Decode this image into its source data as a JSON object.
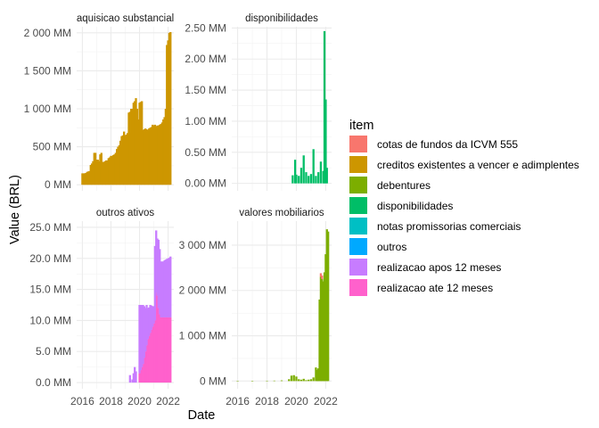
{
  "chart_data": {
    "type": "bar",
    "xlabel": "Date",
    "ylabel": "Value (BRL)",
    "legend": {
      "title": "item",
      "placement": "right",
      "items": [
        {
          "name": "cotas de fundos da ICVM 555",
          "color": "#F8766D"
        },
        {
          "name": "creditos existentes a vencer e adimplentes",
          "color": "#CD9600"
        },
        {
          "name": "debentures",
          "color": "#7CAE00"
        },
        {
          "name": "disponibilidades",
          "color": "#00BE67"
        },
        {
          "name": "notas promissorias comerciais",
          "color": "#00BFC4"
        },
        {
          "name": "outros",
          "color": "#00A9FF"
        },
        {
          "name": "realizacao apos 12 meses",
          "color": "#C77CFF"
        },
        {
          "name": "realizacao ate 12 meses",
          "color": "#FF61CC"
        }
      ]
    },
    "x_ticks": [
      "2016",
      "2018",
      "2020",
      "2022"
    ],
    "xlim": [
      2015.6,
      2022.4
    ],
    "grid": true,
    "panels": [
      {
        "strip": "aquisicao substancial",
        "ylim": [
          -80,
          2080
        ],
        "y_ticks": [
          {
            "v": 0,
            "label": "0 MM"
          },
          {
            "v": 500,
            "label": "500 MM"
          },
          {
            "v": 1000,
            "label": "1 000 MM"
          },
          {
            "v": 1500,
            "label": "1 500 MM"
          },
          {
            "v": 2000,
            "label": "2 000 MM"
          }
        ],
        "series": [
          {
            "name": "creditos existentes a vencer e adimplentes",
            "color": "#CD9600",
            "x": [
              2016.0,
              2016.083,
              2016.167,
              2016.25,
              2016.333,
              2016.417,
              2016.5,
              2016.583,
              2016.667,
              2016.75,
              2016.833,
              2016.917,
              2017.0,
              2017.083,
              2017.167,
              2017.25,
              2017.333,
              2017.417,
              2017.5,
              2017.583,
              2017.667,
              2017.75,
              2017.833,
              2017.917,
              2018.0,
              2018.083,
              2018.167,
              2018.25,
              2018.333,
              2018.417,
              2018.5,
              2018.583,
              2018.667,
              2018.75,
              2018.833,
              2018.917,
              2019.0,
              2019.083,
              2019.167,
              2019.25,
              2019.333,
              2019.417,
              2019.5,
              2019.583,
              2019.667,
              2019.75,
              2019.833,
              2019.917,
              2020.0,
              2020.083,
              2020.167,
              2020.25,
              2020.333,
              2020.417,
              2020.5,
              2020.583,
              2020.667,
              2020.75,
              2020.833,
              2020.917,
              2021.0,
              2021.083,
              2021.167,
              2021.25,
              2021.333,
              2021.417,
              2021.5,
              2021.583,
              2021.667,
              2021.75,
              2021.833,
              2021.917,
              2022.0,
              2022.083,
              2022.167
            ],
            "values": [
              150,
              150,
              150,
              155,
              170,
              175,
              180,
              260,
              280,
              310,
              420,
              420,
              330,
              330,
              310,
              400,
              420,
              300,
              300,
              310,
              320,
              320,
              350,
              360,
              380,
              380,
              390,
              400,
              420,
              470,
              500,
              520,
              580,
              640,
              650,
              700,
              650,
              660,
              680,
              950,
              960,
              1000,
              1000,
              1080,
              1100,
              1140,
              1000,
              860,
              1080,
              1090,
              1100,
              720,
              730,
              740,
              730,
              720,
              740,
              750,
              760,
              790,
              780,
              790,
              770,
              780,
              780,
              790,
              800,
              820,
              860,
              890,
              1000,
              1840,
              1900,
              2000,
              2010
            ]
          }
        ]
      },
      {
        "strip": "disponibilidades",
        "ylim": [
          -0.12,
          2.52
        ],
        "y_ticks": [
          {
            "v": 0,
            "label": "0.00 MM"
          },
          {
            "v": 0.5,
            "label": "0.50 MM"
          },
          {
            "v": 1.0,
            "label": "1.00 MM"
          },
          {
            "v": 1.5,
            "label": "1.50 MM"
          },
          {
            "v": 2.0,
            "label": "2.00 MM"
          },
          {
            "v": 2.5,
            "label": "2.50 MM"
          }
        ],
        "series": [
          {
            "name": "disponibilidades",
            "color": "#00BE67",
            "x": [
              2019.75,
              2019.917,
              2020.0,
              2020.167,
              2020.333,
              2020.5,
              2020.667,
              2020.833,
              2021.0,
              2021.167,
              2021.333,
              2021.5,
              2021.667,
              2021.833,
              2021.917,
              2022.0,
              2022.083
            ],
            "values": [
              0.13,
              0.38,
              0.14,
              0.12,
              0.25,
              0.45,
              0.18,
              0.12,
              0.15,
              0.55,
              0.12,
              0.18,
              0.35,
              0.2,
              2.45,
              1.35,
              0.25
            ]
          }
        ]
      },
      {
        "strip": "outros ativos",
        "ylim": [
          -1.0,
          26.0
        ],
        "y_ticks": [
          {
            "v": 0,
            "label": "0.0 MM"
          },
          {
            "v": 5,
            "label": "5.0 MM"
          },
          {
            "v": 10,
            "label": "10.0 MM"
          },
          {
            "v": 15,
            "label": "15.0 MM"
          },
          {
            "v": 20,
            "label": "20.0 MM"
          },
          {
            "v": 25,
            "label": "25.0 MM"
          }
        ],
        "x": [
          2019.333,
          2019.5,
          2019.583,
          2019.667,
          2019.75,
          2020.0,
          2020.083,
          2020.167,
          2020.25,
          2020.333,
          2020.417,
          2020.5,
          2020.583,
          2020.667,
          2020.75,
          2020.833,
          2020.917,
          2021.0,
          2021.083,
          2021.167,
          2021.25,
          2021.333,
          2021.417,
          2021.5,
          2021.583,
          2021.667,
          2021.75,
          2021.833,
          2021.917,
          2022.0,
          2022.083,
          2022.167
        ],
        "series": [
          {
            "name": "realizacao ate 12 meses",
            "color": "#FF61CC",
            "values": [
              0,
              0,
              0,
              0,
              0,
              1.5,
              2,
              2.5,
              3,
              4,
              5,
              6,
              7,
              7.5,
              8,
              8.5,
              9,
              9.5,
              10,
              14.5,
              14,
              12,
              11,
              10.5,
              10.5,
              10.5,
              10.5,
              10.5,
              10.5,
              10.5,
              10.5,
              10.5
            ]
          },
          {
            "name": "realizacao apos 12 meses",
            "color": "#C77CFF",
            "values": [
              1.2,
              0.5,
              1.5,
              2.5,
              1.8,
              11,
              10.5,
              10,
              9.5,
              8.3,
              7,
              6.5,
              5,
              4.6,
              4.5,
              3.9,
              3.3,
              2.8,
              12,
              10,
              9.2,
              11,
              10.5,
              9,
              9,
              9,
              9.2,
              9.3,
              9.4,
              9.5,
              9.6,
              9.8
            ]
          }
        ]
      },
      {
        "strip": "valores mobiliarios",
        "ylim": [
          -170,
          3530
        ],
        "y_ticks": [
          {
            "v": 0,
            "label": "0 MM"
          },
          {
            "v": 1000,
            "label": "1 000 MM"
          },
          {
            "v": 2000,
            "label": "2 000 MM"
          },
          {
            "v": 3000,
            "label": "3 000 MM"
          }
        ],
        "x": [
          2016.0,
          2017.0,
          2018.0,
          2018.5,
          2019.0,
          2019.5,
          2019.667,
          2019.833,
          2020.0,
          2020.167,
          2020.333,
          2020.5,
          2020.667,
          2020.833,
          2021.0,
          2021.167,
          2021.333,
          2021.417,
          2021.5,
          2021.583,
          2021.667,
          2021.75,
          2021.833,
          2021.917,
          2022.0,
          2022.083,
          2022.167
        ],
        "series": [
          {
            "name": "debentures",
            "color": "#7CAE00",
            "values": [
              5,
              5,
              8,
              10,
              15,
              40,
              120,
              130,
              100,
              40,
              30,
              50,
              20,
              30,
              40,
              80,
              300,
              250,
              280,
              1800,
              2300,
              2250,
              2200,
              2400,
              2800,
              3350,
              3300
            ]
          },
          {
            "name": "cotas de fundos da ICVM 555",
            "color": "#F8766D",
            "values": [
              0,
              0,
              0,
              0,
              0,
              0,
              0,
              0,
              0,
              0,
              0,
              0,
              0,
              0,
              0,
              0,
              0,
              0,
              0,
              0,
              80,
              80,
              0,
              0,
              0,
              0,
              0
            ]
          }
        ]
      }
    ]
  }
}
